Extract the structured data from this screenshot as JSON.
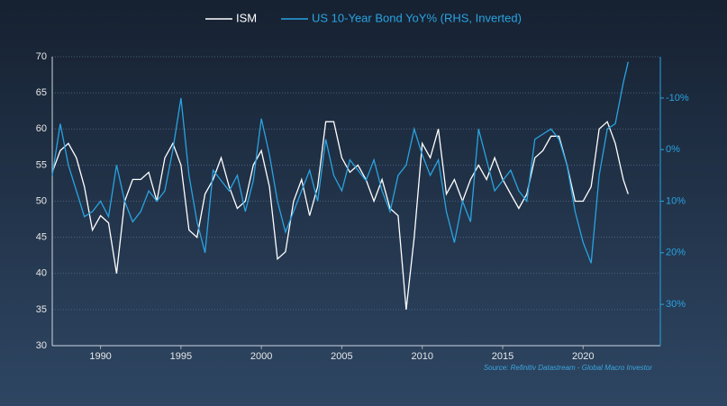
{
  "chart_data": {
    "type": "line",
    "source": "Source: Refinitiv Datastream - Global Macro Investor",
    "x": [
      1987.0,
      1987.5,
      1988.0,
      1988.5,
      1989.0,
      1989.5,
      1990.0,
      1990.5,
      1991.0,
      1991.5,
      1992.0,
      1992.5,
      1993.0,
      1993.5,
      1994.0,
      1994.5,
      1995.0,
      1995.5,
      1996.0,
      1996.5,
      1997.0,
      1997.5,
      1998.0,
      1998.5,
      1999.0,
      1999.5,
      2000.0,
      2000.5,
      2001.0,
      2001.5,
      2002.0,
      2002.5,
      2003.0,
      2003.5,
      2004.0,
      2004.5,
      2005.0,
      2005.5,
      2006.0,
      2006.5,
      2007.0,
      2007.5,
      2008.0,
      2008.5,
      2009.0,
      2009.5,
      2010.0,
      2010.5,
      2011.0,
      2011.5,
      2012.0,
      2012.5,
      2013.0,
      2013.5,
      2014.0,
      2014.5,
      2015.0,
      2015.5,
      2016.0,
      2016.5,
      2017.0,
      2017.5,
      2018.0,
      2018.5,
      2019.0,
      2019.5,
      2020.0,
      2020.5,
      2021.0,
      2021.5,
      2022.0,
      2022.5,
      2022.8
    ],
    "series": [
      {
        "name": "ISM",
        "color": "#ffffff",
        "values": [
          54,
          57,
          58,
          56,
          52,
          46,
          48,
          47,
          40,
          50,
          53,
          53,
          54,
          50,
          56,
          58,
          55,
          46,
          45,
          51,
          53,
          56,
          52,
          49,
          50,
          55,
          57,
          52,
          42,
          43,
          50,
          53,
          48,
          52,
          61,
          61,
          56,
          54,
          55,
          53,
          50,
          53,
          49,
          48,
          35,
          45,
          58,
          56,
          60,
          51,
          53,
          50,
          53,
          55,
          53,
          56,
          53,
          51,
          49,
          51,
          56,
          57,
          59,
          59,
          55,
          50,
          50,
          52,
          60,
          61,
          58,
          53,
          51
        ]
      },
      {
        "name": "US 10-Year Bond YoY% (RHS, Inverted)",
        "color": "#29a3e0",
        "axis": "y2",
        "values": [
          5,
          -5,
          3,
          8,
          13,
          12,
          10,
          13,
          3,
          10,
          14,
          12,
          8,
          10,
          8,
          0,
          -10,
          5,
          14,
          20,
          4,
          6,
          8,
          5,
          12,
          6,
          -6,
          1,
          10,
          16,
          12,
          8,
          4,
          10,
          -2,
          5,
          8,
          2,
          4,
          6,
          2,
          8,
          12,
          5,
          3,
          -4,
          1,
          5,
          2,
          12,
          18,
          10,
          14,
          -4,
          2,
          8,
          6,
          4,
          8,
          10,
          -2,
          -3,
          -4,
          -2,
          3,
          12,
          18,
          22,
          5,
          -4,
          -5,
          -13,
          -17
        ]
      }
    ],
    "xlim": [
      1987,
      2024.8
    ],
    "xticks": [
      1990,
      1995,
      2000,
      2005,
      2010,
      2015,
      2020
    ],
    "ylim": [
      30,
      70
    ],
    "yticks": [
      30,
      35,
      40,
      45,
      50,
      55,
      60,
      65,
      70
    ],
    "y2lim": [
      -18,
      38
    ],
    "y2_inverted": true,
    "y2ticks": [
      {
        "value": -10,
        "label": "-10%"
      },
      {
        "value": 0,
        "label": "0%"
      },
      {
        "value": 10,
        "label": "10%"
      },
      {
        "value": 20,
        "label": "20%"
      },
      {
        "value": 30,
        "label": "30%"
      }
    ],
    "grid": true
  }
}
